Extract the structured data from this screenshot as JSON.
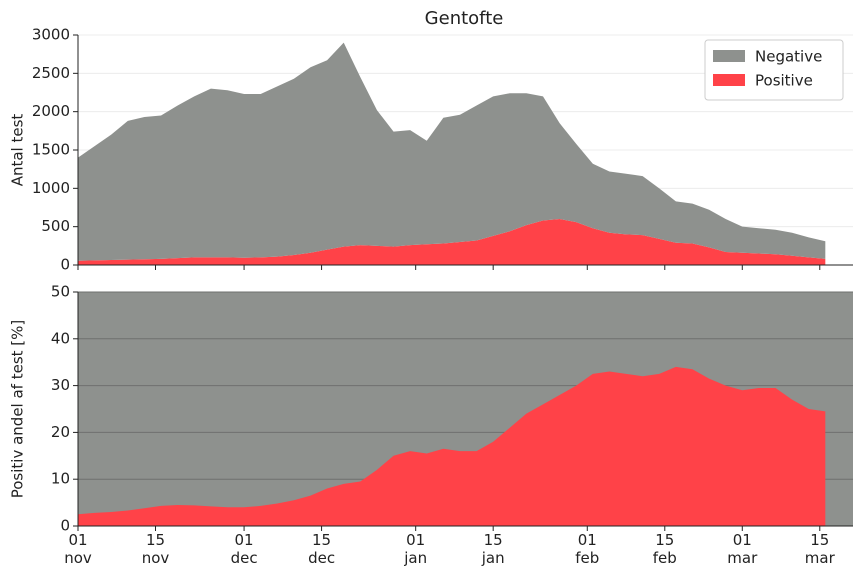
{
  "chart_data": [
    {
      "type": "area",
      "title": "Gentofte",
      "ylabel": "Antal test",
      "x": [
        "11-01",
        "11-04",
        "11-07",
        "11-10",
        "11-13",
        "11-16",
        "11-19",
        "11-22",
        "11-25",
        "11-28",
        "12-01",
        "12-04",
        "12-07",
        "12-10",
        "12-13",
        "12-16",
        "12-19",
        "12-22",
        "12-25",
        "12-28",
        "12-31",
        "01-03",
        "01-06",
        "01-09",
        "01-12",
        "01-15",
        "01-18",
        "01-21",
        "01-24",
        "01-27",
        "01-30",
        "02-02",
        "02-05",
        "02-08",
        "02-11",
        "02-14",
        "02-17",
        "02-20",
        "02-23",
        "02-26",
        "03-01",
        "03-04",
        "03-07",
        "03-10",
        "03-13",
        "03-16"
      ],
      "series": [
        {
          "name": "Positive",
          "color": "#ff4248",
          "values": [
            55,
            60,
            65,
            70,
            75,
            80,
            90,
            100,
            100,
            100,
            95,
            100,
            110,
            130,
            160,
            200,
            240,
            260,
            250,
            240,
            260,
            270,
            280,
            300,
            320,
            380,
            440,
            520,
            580,
            600,
            560,
            480,
            420,
            400,
            390,
            340,
            290,
            280,
            230,
            170,
            160,
            150,
            140,
            120,
            100,
            80
          ]
        },
        {
          "name": "Negative",
          "color": "#8e918e",
          "values": [
            1345,
            1490,
            1635,
            1810,
            1855,
            1870,
            1990,
            2100,
            2200,
            2180,
            2135,
            2130,
            2220,
            2300,
            2420,
            2470,
            2660,
            2190,
            1770,
            1500,
            1500,
            1350,
            1640,
            1660,
            1760,
            1820,
            1800,
            1720,
            1620,
            1250,
            1020,
            840,
            800,
            790,
            770,
            660,
            540,
            520,
            490,
            430,
            340,
            330,
            320,
            300,
            260,
            230
          ]
        }
      ],
      "xlim": [
        "11-01",
        "03-21"
      ],
      "xticks": [
        "11-01",
        "11-15",
        "12-01",
        "12-15",
        "01-01",
        "01-15",
        "02-01",
        "02-15",
        "03-01",
        "03-15"
      ],
      "ylim": [
        0,
        3000
      ],
      "yticks": [
        0,
        500,
        1000,
        1500,
        2000,
        2500,
        3000
      ],
      "grid": true,
      "legend": "upper right"
    },
    {
      "type": "area",
      "ylabel": "Positiv andel af test [%]",
      "background": "#8e918e",
      "x": [
        "11-01",
        "11-04",
        "11-07",
        "11-10",
        "11-13",
        "11-16",
        "11-19",
        "11-22",
        "11-25",
        "11-28",
        "12-01",
        "12-04",
        "12-07",
        "12-10",
        "12-13",
        "12-16",
        "12-19",
        "12-22",
        "12-25",
        "12-28",
        "12-31",
        "01-03",
        "01-06",
        "01-09",
        "01-12",
        "01-15",
        "01-18",
        "01-21",
        "01-24",
        "01-27",
        "01-30",
        "02-02",
        "02-05",
        "02-08",
        "02-11",
        "02-14",
        "02-17",
        "02-20",
        "02-23",
        "02-26",
        "03-01",
        "03-04",
        "03-07",
        "03-10",
        "03-13",
        "03-16"
      ],
      "series": [
        {
          "color": "#ff4248",
          "values": [
            2.5,
            2.8,
            3.0,
            3.3,
            3.8,
            4.3,
            4.5,
            4.4,
            4.2,
            4.0,
            4.0,
            4.3,
            4.8,
            5.5,
            6.5,
            8.0,
            9.0,
            9.5,
            12,
            15,
            16,
            15.5,
            16.5,
            16,
            16,
            18,
            21,
            24,
            26,
            28,
            30,
            32.5,
            33,
            32.5,
            32,
            32.5,
            34,
            33.5,
            31.5,
            30,
            29,
            29.5,
            29.5,
            27,
            25,
            24.5
          ]
        }
      ],
      "xlim": [
        "11-01",
        "03-21"
      ],
      "xticks": [
        {
          "value": "11-01",
          "label": "01\nnov"
        },
        {
          "value": "11-15",
          "label": "15\nnov"
        },
        {
          "value": "12-01",
          "label": "01\ndec"
        },
        {
          "value": "12-15",
          "label": "15\ndec"
        },
        {
          "value": "01-01",
          "label": "01\njan"
        },
        {
          "value": "01-15",
          "label": "15\njan"
        },
        {
          "value": "02-01",
          "label": "01\nfeb"
        },
        {
          "value": "02-15",
          "label": "15\nfeb"
        },
        {
          "value": "03-01",
          "label": "01\nmar"
        },
        {
          "value": "03-15",
          "label": "15\nmar"
        }
      ],
      "ylim": [
        0,
        50
      ],
      "yticks": [
        0,
        10,
        20,
        30,
        40,
        50
      ],
      "grid": true
    }
  ]
}
